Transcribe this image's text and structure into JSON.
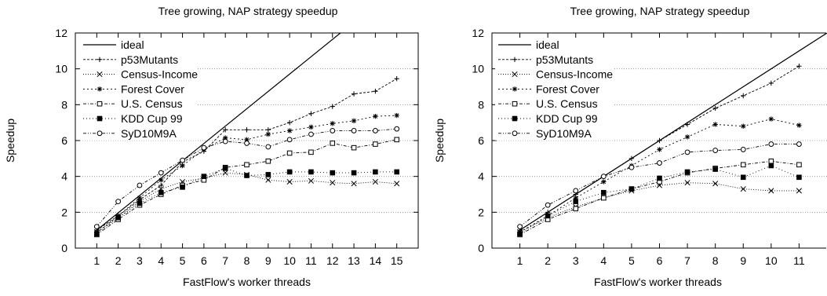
{
  "chart_data": [
    {
      "type": "line",
      "title": "Tree growing, NAP strategy  speedup",
      "xlabel": "FastFlow's worker threads",
      "ylabel": "Speedup",
      "x": [
        1,
        2,
        3,
        4,
        5,
        6,
        7,
        8,
        9,
        10,
        11,
        12,
        13,
        14,
        15
      ],
      "xticks": [
        "1",
        "2",
        "3",
        "4",
        "5",
        "6",
        "7",
        "8",
        "9",
        "10",
        "11",
        "12",
        "13",
        "14",
        "15"
      ],
      "yticks": [
        "0",
        "2",
        "4",
        "6",
        "8",
        "10",
        "12"
      ],
      "xlim": [
        0,
        16
      ],
      "ylim": [
        0,
        12
      ],
      "grid": "horizontal dotted",
      "legend_position": "top-left",
      "series": [
        {
          "name": "ideal",
          "marker": "none",
          "dash": "solid",
          "x": [
            1,
            12.37
          ],
          "values": [
            1,
            12
          ]
        },
        {
          "name": "p53Mutants",
          "marker": "plus",
          "dash": "3,2",
          "values": [
            1.0,
            1.8,
            2.7,
            3.5,
            4.8,
            5.4,
            6.6,
            6.6,
            6.6,
            7.0,
            7.5,
            7.9,
            8.6,
            8.75,
            9.45
          ]
        },
        {
          "name": "Census-Income",
          "marker": "cross",
          "dash": "1,2",
          "values": [
            0.9,
            1.7,
            2.6,
            3.3,
            3.7,
            3.9,
            4.2,
            4.1,
            3.8,
            3.7,
            3.75,
            3.65,
            3.6,
            3.7,
            3.6
          ]
        },
        {
          "name": "Forest Cover",
          "marker": "asterisk",
          "dash": "2,3",
          "values": [
            0.85,
            1.8,
            2.8,
            3.8,
            4.6,
            5.5,
            6.15,
            6.05,
            6.35,
            6.55,
            6.75,
            6.95,
            7.1,
            7.35,
            7.4
          ]
        },
        {
          "name": "U.S. Census",
          "marker": "square-open",
          "dash": "4,2,1,2",
          "values": [
            0.75,
            1.6,
            2.4,
            3.0,
            3.5,
            3.8,
            4.5,
            4.65,
            4.85,
            5.3,
            5.35,
            5.85,
            5.6,
            5.8,
            6.05
          ]
        },
        {
          "name": "KDD Cup 99",
          "marker": "square-filled",
          "dash": "1,3",
          "values": [
            0.8,
            1.7,
            2.5,
            3.1,
            3.4,
            4.0,
            4.45,
            4.05,
            4.1,
            4.25,
            4.25,
            4.2,
            4.2,
            4.25,
            4.25
          ]
        },
        {
          "name": "SyD10M9A",
          "marker": "circle-open",
          "dash": "4,2,1,2,1,2",
          "values": [
            1.2,
            2.6,
            3.5,
            4.2,
            4.9,
            5.6,
            5.95,
            5.85,
            5.65,
            6.05,
            6.35,
            6.55,
            6.55,
            6.55,
            6.65
          ]
        }
      ]
    },
    {
      "type": "line",
      "title": "Tree growing, NAP strategy speedup",
      "xlabel": "FastFlow's worker threads",
      "ylabel": "Speedup",
      "x": [
        1,
        2,
        3,
        4,
        5,
        6,
        7,
        8,
        9,
        10,
        11
      ],
      "xticks": [
        "1",
        "2",
        "3",
        "4",
        "5",
        "6",
        "7",
        "8",
        "9",
        "10",
        "11"
      ],
      "yticks": [
        "0",
        "2",
        "4",
        "6",
        "8",
        "10",
        "12"
      ],
      "xlim": [
        0,
        12
      ],
      "ylim": [
        0,
        12
      ],
      "grid": "horizontal dotted",
      "legend_position": "top-left",
      "series": [
        {
          "name": "ideal",
          "marker": "none",
          "dash": "solid",
          "x": [
            1,
            12
          ],
          "values": [
            1,
            12
          ]
        },
        {
          "name": "p53Mutants",
          "marker": "plus",
          "dash": "3,2",
          "values": [
            1.0,
            2.0,
            3.0,
            4.0,
            5.0,
            6.0,
            6.9,
            7.8,
            8.5,
            9.2,
            10.15
          ]
        },
        {
          "name": "Census-Income",
          "marker": "cross",
          "dash": "1,2",
          "values": [
            0.9,
            1.7,
            2.3,
            2.8,
            3.2,
            3.5,
            3.65,
            3.6,
            3.3,
            3.2,
            3.2
          ]
        },
        {
          "name": "Forest Cover",
          "marker": "asterisk",
          "dash": "2,3",
          "values": [
            0.9,
            1.8,
            2.8,
            3.7,
            4.6,
            5.5,
            6.2,
            6.9,
            6.8,
            7.2,
            6.85
          ]
        },
        {
          "name": "U.S. Census",
          "marker": "square-open",
          "dash": "4,2,1,2",
          "values": [
            0.75,
            1.6,
            2.2,
            2.8,
            3.3,
            3.7,
            4.2,
            4.45,
            4.65,
            4.85,
            4.65
          ]
        },
        {
          "name": "KDD Cup 99",
          "marker": "square-filled",
          "dash": "1,3",
          "values": [
            0.8,
            1.8,
            2.6,
            3.1,
            3.3,
            3.9,
            4.25,
            4.4,
            3.95,
            4.6,
            3.95
          ]
        },
        {
          "name": "SyD10M9A",
          "marker": "circle-open",
          "dash": "4,2,1,2,1,2",
          "values": [
            1.2,
            2.4,
            3.2,
            4.0,
            4.5,
            4.75,
            5.35,
            5.45,
            5.5,
            5.8,
            5.8
          ]
        }
      ]
    }
  ]
}
